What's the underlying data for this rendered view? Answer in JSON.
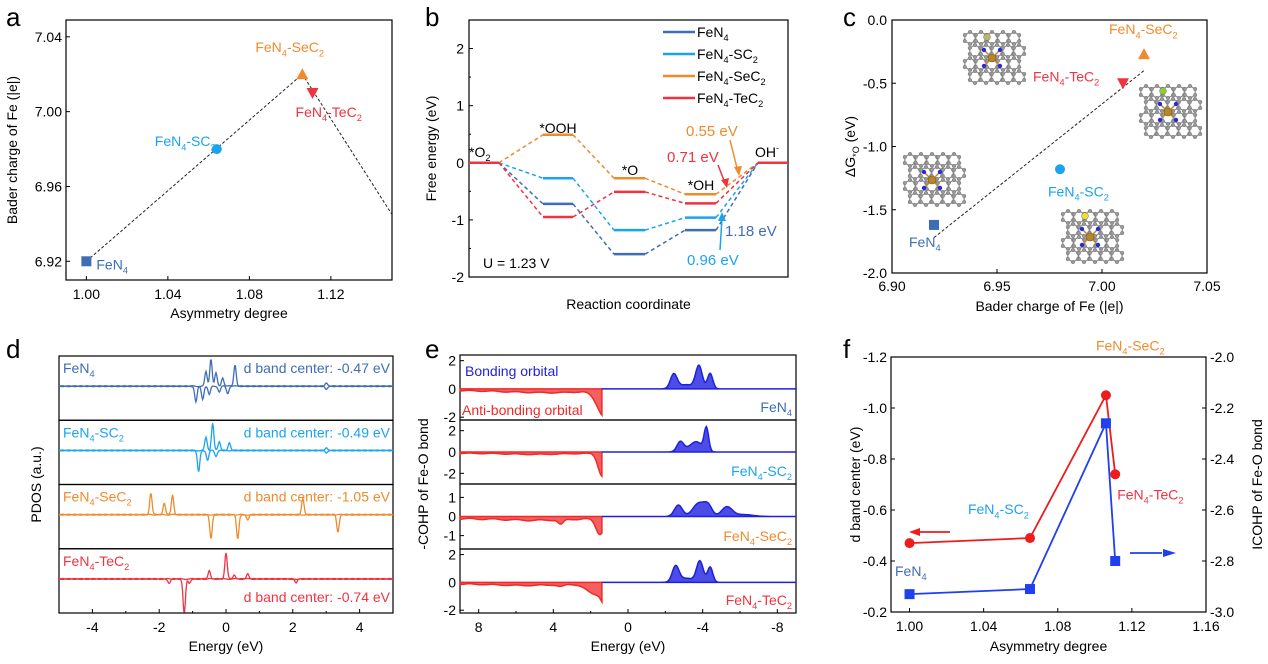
{
  "colors": {
    "FeN4": "#3f6db5",
    "FeN4-SC2": "#1aa3f0",
    "FeN4-SeC2": "#f08a2c",
    "FeN4-TeC2": "#ef3340",
    "bonding": "#1f1fe0",
    "antibonding": "#f02a2a",
    "dband_red": "#ee1c1c",
    "icohp_blue": "#1f3ff0"
  },
  "chart_data": [
    {
      "panel": "a",
      "type": "scatter",
      "title": "",
      "xlabel": "Asymmetry degree",
      "ylabel": "Bader charge of Fe (|e|)",
      "xlim": [
        0.99,
        1.15
      ],
      "ylim": [
        6.91,
        7.049
      ],
      "xticks": [
        "1.00",
        "1.04",
        "1.08",
        "1.12"
      ],
      "xtick_values": [
        1.0,
        1.04,
        1.08,
        1.12
      ],
      "yticks": [
        "6.92",
        "6.96",
        "7.00",
        "7.04"
      ],
      "ytick_values": [
        6.92,
        6.96,
        7.0,
        7.04
      ],
      "points": [
        {
          "label": "FeN4",
          "label_main": "FeN",
          "label_sub": "4",
          "label_rest": "",
          "label_sub2": "",
          "x": 1.0,
          "y": 6.92,
          "marker": "square"
        },
        {
          "label": "FeN4-SC2",
          "label_main": "FeN",
          "label_sub": "4",
          "label_rest": "-SC",
          "label_sub2": "2",
          "x": 1.064,
          "y": 6.98,
          "marker": "circle"
        },
        {
          "label": "FeN4-SeC2",
          "label_main": "FeN",
          "label_sub": "4",
          "label_rest": "-SeC",
          "label_sub2": "2",
          "x": 1.106,
          "y": 7.02,
          "marker": "triangle-up"
        },
        {
          "label": "FeN4-TeC2",
          "label_main": "FeN",
          "label_sub": "4",
          "label_rest": "-TeC",
          "label_sub2": "2",
          "x": 1.111,
          "y": 7.01,
          "marker": "triangle-down"
        }
      ],
      "trend_line": [
        [
          1.0,
          6.92
        ],
        [
          1.106,
          7.02
        ],
        [
          1.15,
          6.945
        ]
      ]
    },
    {
      "panel": "b",
      "type": "line",
      "title": "",
      "xlabel": "Reaction coordinate",
      "ylabel": "Free energy (eV)",
      "ylim": [
        -2,
        2.5
      ],
      "yticks": [
        "-2",
        "-1",
        "0",
        "1",
        "2"
      ],
      "ytick_values": [
        -2,
        -1,
        0,
        1,
        2
      ],
      "steps": [
        "*O2",
        "*OOH",
        "*O",
        "*OH",
        "OH-"
      ],
      "series": [
        {
          "name": "FeN4",
          "legend_main": "FeN",
          "legend_sub": "4",
          "legend_rest": "",
          "legend_sub2": "",
          "values": [
            0,
            -0.72,
            -1.6,
            -1.18,
            0
          ]
        },
        {
          "name": "FeN4-SC2",
          "legend_main": "FeN",
          "legend_sub": "4",
          "legend_rest": "-SC",
          "legend_sub2": "2",
          "values": [
            0,
            -0.27,
            -1.18,
            -0.96,
            0
          ]
        },
        {
          "name": "FeN4-SeC2",
          "legend_main": "FeN",
          "legend_sub": "4",
          "legend_rest": "-SeC",
          "legend_sub2": "2",
          "values": [
            0,
            0.49,
            -0.27,
            -0.55,
            0
          ]
        },
        {
          "name": "FeN4-TeC2",
          "legend_main": "FeN",
          "legend_sub": "4",
          "legend_rest": "-TeC",
          "legend_sub2": "2",
          "values": [
            0,
            -0.95,
            -0.51,
            -0.71,
            0
          ]
        }
      ],
      "annotations": {
        "potential": "U = 1.23 V",
        "seC2_step": "0.55 eV",
        "teC2_step": "0.71 eV",
        "feN4_step": "1.18 eV",
        "sC2_step": "0.96 eV",
        "label_o2": "*O",
        "label_o2_sub": "2",
        "label_ooh": "*OOH",
        "label_o": "*O",
        "label_oh": "*OH",
        "label_ohm": "OH",
        "label_ohm_sup": "-"
      },
      "legend": "top-right"
    },
    {
      "panel": "c",
      "type": "scatter",
      "title": "",
      "xlabel": "Bader charge of Fe (|e|)",
      "ylabel": "ΔG*O (eV)",
      "ylabel_main": "ΔG",
      "ylabel_sub": "*O",
      "ylabel_rest": " (eV)",
      "xlim": [
        6.9,
        7.05
      ],
      "ylim": [
        -2.0,
        0.0
      ],
      "xticks": [
        "6.90",
        "6.95",
        "7.00",
        "7.05"
      ],
      "xtick_values": [
        6.9,
        6.95,
        7.0,
        7.05
      ],
      "yticks": [
        "-2.0",
        "-1.5",
        "-1.0",
        "-0.5",
        "0.0"
      ],
      "ytick_values": [
        -2.0,
        -1.5,
        -1.0,
        -0.5,
        0.0
      ],
      "points": [
        {
          "label": "FeN4",
          "x": 6.92,
          "y": -1.62,
          "marker": "square"
        },
        {
          "label": "FeN4-SC2",
          "x": 6.98,
          "y": -1.18,
          "marker": "circle"
        },
        {
          "label": "FeN4-TeC2",
          "x": 7.01,
          "y": -0.5,
          "marker": "triangle-down"
        },
        {
          "label": "FeN4-SeC2",
          "x": 7.02,
          "y": -0.27,
          "marker": "triangle-up"
        }
      ],
      "trend_line": [
        [
          6.92,
          -1.72
        ],
        [
          7.02,
          -0.4
        ]
      ],
      "insets": [
        "FeN4-SeC2 structure",
        "FeN4-TeC2 structure",
        "FeN4 structure",
        "FeN4-SC2 structure"
      ]
    },
    {
      "panel": "d",
      "type": "line",
      "title": "",
      "xlabel": "Energy (eV)",
      "ylabel": "PDOS (a.u.)",
      "xlim": [
        -5,
        5
      ],
      "xticks": [
        "-4",
        "-2",
        "0",
        "2",
        "4"
      ],
      "xtick_values": [
        -4,
        -2,
        0,
        2,
        4
      ],
      "subpanels": [
        {
          "name": "FeN4",
          "label_main": "FeN",
          "label_sub": "4",
          "label_rest": "",
          "label_sub2": "",
          "dband": "d band center: -0.47 eV",
          "dband_value": -0.47,
          "up_peaks": [
            [
              -0.45,
              0.95
            ],
            [
              -0.6,
              0.5
            ],
            [
              -0.3,
              0.45
            ],
            [
              -0.1,
              0.3
            ],
            [
              0.27,
              0.75
            ],
            [
              3.0,
              0.1
            ]
          ],
          "down_peaks": [
            [
              -0.9,
              0.55
            ],
            [
              -0.7,
              0.45
            ],
            [
              -0.5,
              0.3
            ],
            [
              -0.2,
              0.2
            ],
            [
              0.05,
              0.25
            ],
            [
              3.0,
              0.1
            ]
          ]
        },
        {
          "name": "FeN4-SC2",
          "label_main": "FeN",
          "label_sub": "4",
          "label_rest": "-SC",
          "label_sub2": "2",
          "dband": "d band center: -0.49 eV",
          "dband_value": -0.49,
          "up_peaks": [
            [
              -0.4,
              0.95
            ],
            [
              -0.6,
              0.45
            ],
            [
              -0.2,
              0.3
            ],
            [
              0.1,
              0.25
            ],
            [
              3.0,
              0.08
            ]
          ],
          "down_peaks": [
            [
              -0.82,
              0.75
            ],
            [
              -0.55,
              0.35
            ],
            [
              -0.3,
              0.2
            ],
            [
              3.0,
              0.08
            ]
          ]
        },
        {
          "name": "FeN4-SeC2",
          "label_main": "FeN",
          "label_sub": "4",
          "label_rest": "-SeC",
          "label_sub2": "2",
          "dband": "d band center: -1.05 eV",
          "dband_value": -1.05,
          "up_peaks": [
            [
              -2.25,
              0.75
            ],
            [
              -1.6,
              0.7
            ],
            [
              -1.85,
              0.4
            ],
            [
              2.3,
              0.55
            ]
          ],
          "down_peaks": [
            [
              -0.45,
              0.85
            ],
            [
              0.35,
              0.85
            ],
            [
              0.65,
              0.2
            ],
            [
              3.35,
              0.6
            ]
          ]
        },
        {
          "name": "FeN4-TeC2",
          "label_main": "FeN",
          "label_sub": "4",
          "label_rest": "-TeC",
          "label_sub2": "2",
          "dband": "d band center: -0.74 eV",
          "dband_value": -0.74,
          "up_peaks": [
            [
              0.0,
              0.9
            ],
            [
              -0.5,
              0.3
            ],
            [
              0.65,
              0.2
            ],
            [
              0.25,
              0.15
            ]
          ],
          "down_peaks": [
            [
              -1.25,
              1.2
            ],
            [
              -1.7,
              0.15
            ],
            [
              -1.1,
              0.15
            ],
            [
              2.1,
              0.15
            ]
          ]
        }
      ]
    },
    {
      "panel": "e",
      "type": "area",
      "title": "",
      "xlabel": "Energy (eV)",
      "ylabel": "-COHP of Fe-O bond",
      "xlim": [
        9,
        -9
      ],
      "xticks": [
        "8",
        "4",
        "0",
        "-4",
        "-8"
      ],
      "xtick_values": [
        8,
        4,
        0,
        -4,
        -8
      ],
      "legend_bonding": "Bonding orbital",
      "legend_antibonding": "Anti-bonding orbital",
      "subpanels": [
        {
          "name": "FeN4",
          "label_main": "FeN",
          "label_sub": "4",
          "label_rest": "",
          "label_sub2": "",
          "ylim": [
            -2.2,
            2.4
          ],
          "yticks": [
            "-2",
            "0",
            "2"
          ],
          "ytick_values": [
            -2,
            0,
            2
          ],
          "anti_peaks": [
            [
              1.2,
              1.9,
              0.6
            ],
            [
              -0.3,
              1.4,
              0.3
            ],
            [
              5.5,
              0.1,
              2
            ],
            [
              3.5,
              0.1,
              1.5
            ]
          ],
          "bond_peaks": [
            [
              -2.45,
              1.0,
              0.25
            ],
            [
              -3.8,
              1.6,
              0.25
            ],
            [
              -4.4,
              1.1,
              0.2
            ],
            [
              -3.1,
              0.3,
              0.6
            ]
          ]
        },
        {
          "name": "FeN4-SC2",
          "label_main": "FeN",
          "label_sub": "4",
          "label_rest": "-SC",
          "label_sub2": "2",
          "ylim": [
            -3,
            3
          ],
          "yticks": [
            "-2",
            "0",
            "2"
          ],
          "ytick_values": [
            -2,
            0,
            2
          ],
          "anti_peaks": [
            [
              1.4,
              1.9,
              0.3
            ],
            [
              0.9,
              1.2,
              0.3
            ],
            [
              -0.1,
              1.9,
              0.2
            ],
            [
              0.6,
              0.9,
              0.6
            ],
            [
              5,
              0.1,
              2
            ]
          ],
          "bond_peaks": [
            [
              -2.8,
              0.9,
              0.25
            ],
            [
              -3.7,
              0.8,
              0.4
            ],
            [
              -4.2,
              2.2,
              0.17
            ],
            [
              -3.3,
              0.3,
              0.5
            ]
          ]
        },
        {
          "name": "FeN4-SeC2",
          "label_main": "FeN",
          "label_sub": "4",
          "label_rest": "-SeC",
          "label_sub2": "2",
          "ylim": [
            -1.7,
            1.7
          ],
          "yticks": [
            "-1",
            "0",
            "1"
          ],
          "ytick_values": [
            -1,
            0,
            1
          ],
          "anti_peaks": [
            [
              1.5,
              0.8,
              0.3
            ],
            [
              0.65,
              1.0,
              0.3
            ],
            [
              -0.9,
              0.9,
              0.3
            ],
            [
              0.0,
              0.4,
              0.4
            ],
            [
              -0.4,
              0.3,
              0.3
            ],
            [
              3.6,
              0.25,
              0.2
            ],
            [
              5,
              0.08,
              2
            ]
          ],
          "bond_peaks": [
            [
              -2.7,
              0.6,
              0.3
            ],
            [
              -3.8,
              0.7,
              0.45
            ],
            [
              -4.3,
              0.5,
              0.3
            ],
            [
              -5.3,
              0.5,
              0.4
            ],
            [
              -6.2,
              0.1,
              0.7
            ]
          ]
        },
        {
          "name": "FeN4-TeC2",
          "label_main": "FeN",
          "label_sub": "4",
          "label_rest": "-TeC",
          "label_sub2": "2",
          "ylim": [
            -2.2,
            2.4
          ],
          "yticks": [
            "-2",
            "0",
            "2"
          ],
          "ytick_values": [
            -2,
            0,
            2
          ],
          "anti_peaks": [
            [
              1.1,
              1.7,
              0.35
            ],
            [
              1.8,
              0.7,
              0.6
            ],
            [
              -0.5,
              1.4,
              0.25
            ],
            [
              3.6,
              0.15,
              0.25
            ],
            [
              5.5,
              0.1,
              2
            ]
          ],
          "bond_peaks": [
            [
              -2.55,
              1.1,
              0.25
            ],
            [
              -3.85,
              1.5,
              0.25
            ],
            [
              -4.4,
              1.1,
              0.2
            ],
            [
              -3.1,
              0.3,
              0.6
            ]
          ]
        }
      ]
    },
    {
      "panel": "f",
      "type": "line",
      "title": "",
      "xlabel": "Asymmetry degree",
      "ylabel_left": "d band center (eV)",
      "ylabel_right": "ICOHP of Fe-O bond",
      "xlim": [
        0.99,
        1.16
      ],
      "xticks": [
        "1.00",
        "1.04",
        "1.08",
        "1.12",
        "1.16"
      ],
      "xtick_values": [
        1.0,
        1.04,
        1.08,
        1.12,
        1.16
      ],
      "ylim_left": [
        -0.2,
        -1.2
      ],
      "yticks_left": [
        "-0.2",
        "-0.4",
        "-0.6",
        "-0.8",
        "-1.0",
        "-1.2"
      ],
      "ytick_values_left": [
        -0.2,
        -0.4,
        -0.6,
        -0.8,
        -1.0,
        -1.2
      ],
      "ylim_right": [
        -3.0,
        -2.0
      ],
      "yticks_right": [
        "-3.0",
        "-2.8",
        "-2.6",
        "-2.4",
        "-2.2",
        "-2.0"
      ],
      "ytick_values_right": [
        -3.0,
        -2.8,
        -2.6,
        -2.4,
        -2.2,
        -2.0
      ],
      "x": [
        1.0,
        1.065,
        1.106,
        1.111
      ],
      "series": [
        {
          "name": "d band center",
          "axis": "left",
          "marker": "circle",
          "values": [
            -0.47,
            -0.49,
            -1.05,
            -0.74
          ]
        },
        {
          "name": "ICOHP of Fe-O bond",
          "axis": "right",
          "marker": "square",
          "values": [
            -2.93,
            -2.91,
            -2.26,
            -2.8
          ]
        }
      ],
      "point_labels": [
        {
          "main": "FeN",
          "sub": "4",
          "rest": "",
          "sub2": "",
          "color_key": "FeN4"
        },
        {
          "main": "FeN",
          "sub": "4",
          "rest": "-SC",
          "sub2": "2",
          "color_key": "FeN4-SC2"
        },
        {
          "main": "FeN",
          "sub": "4",
          "rest": "-SeC",
          "sub2": "2",
          "color_key": "FeN4-SeC2"
        },
        {
          "main": "FeN",
          "sub": "4",
          "rest": "-TeC",
          "sub2": "2",
          "color_key": "FeN4-TeC2"
        }
      ]
    }
  ],
  "panel_labels": [
    "a",
    "b",
    "c",
    "d",
    "e",
    "f"
  ]
}
